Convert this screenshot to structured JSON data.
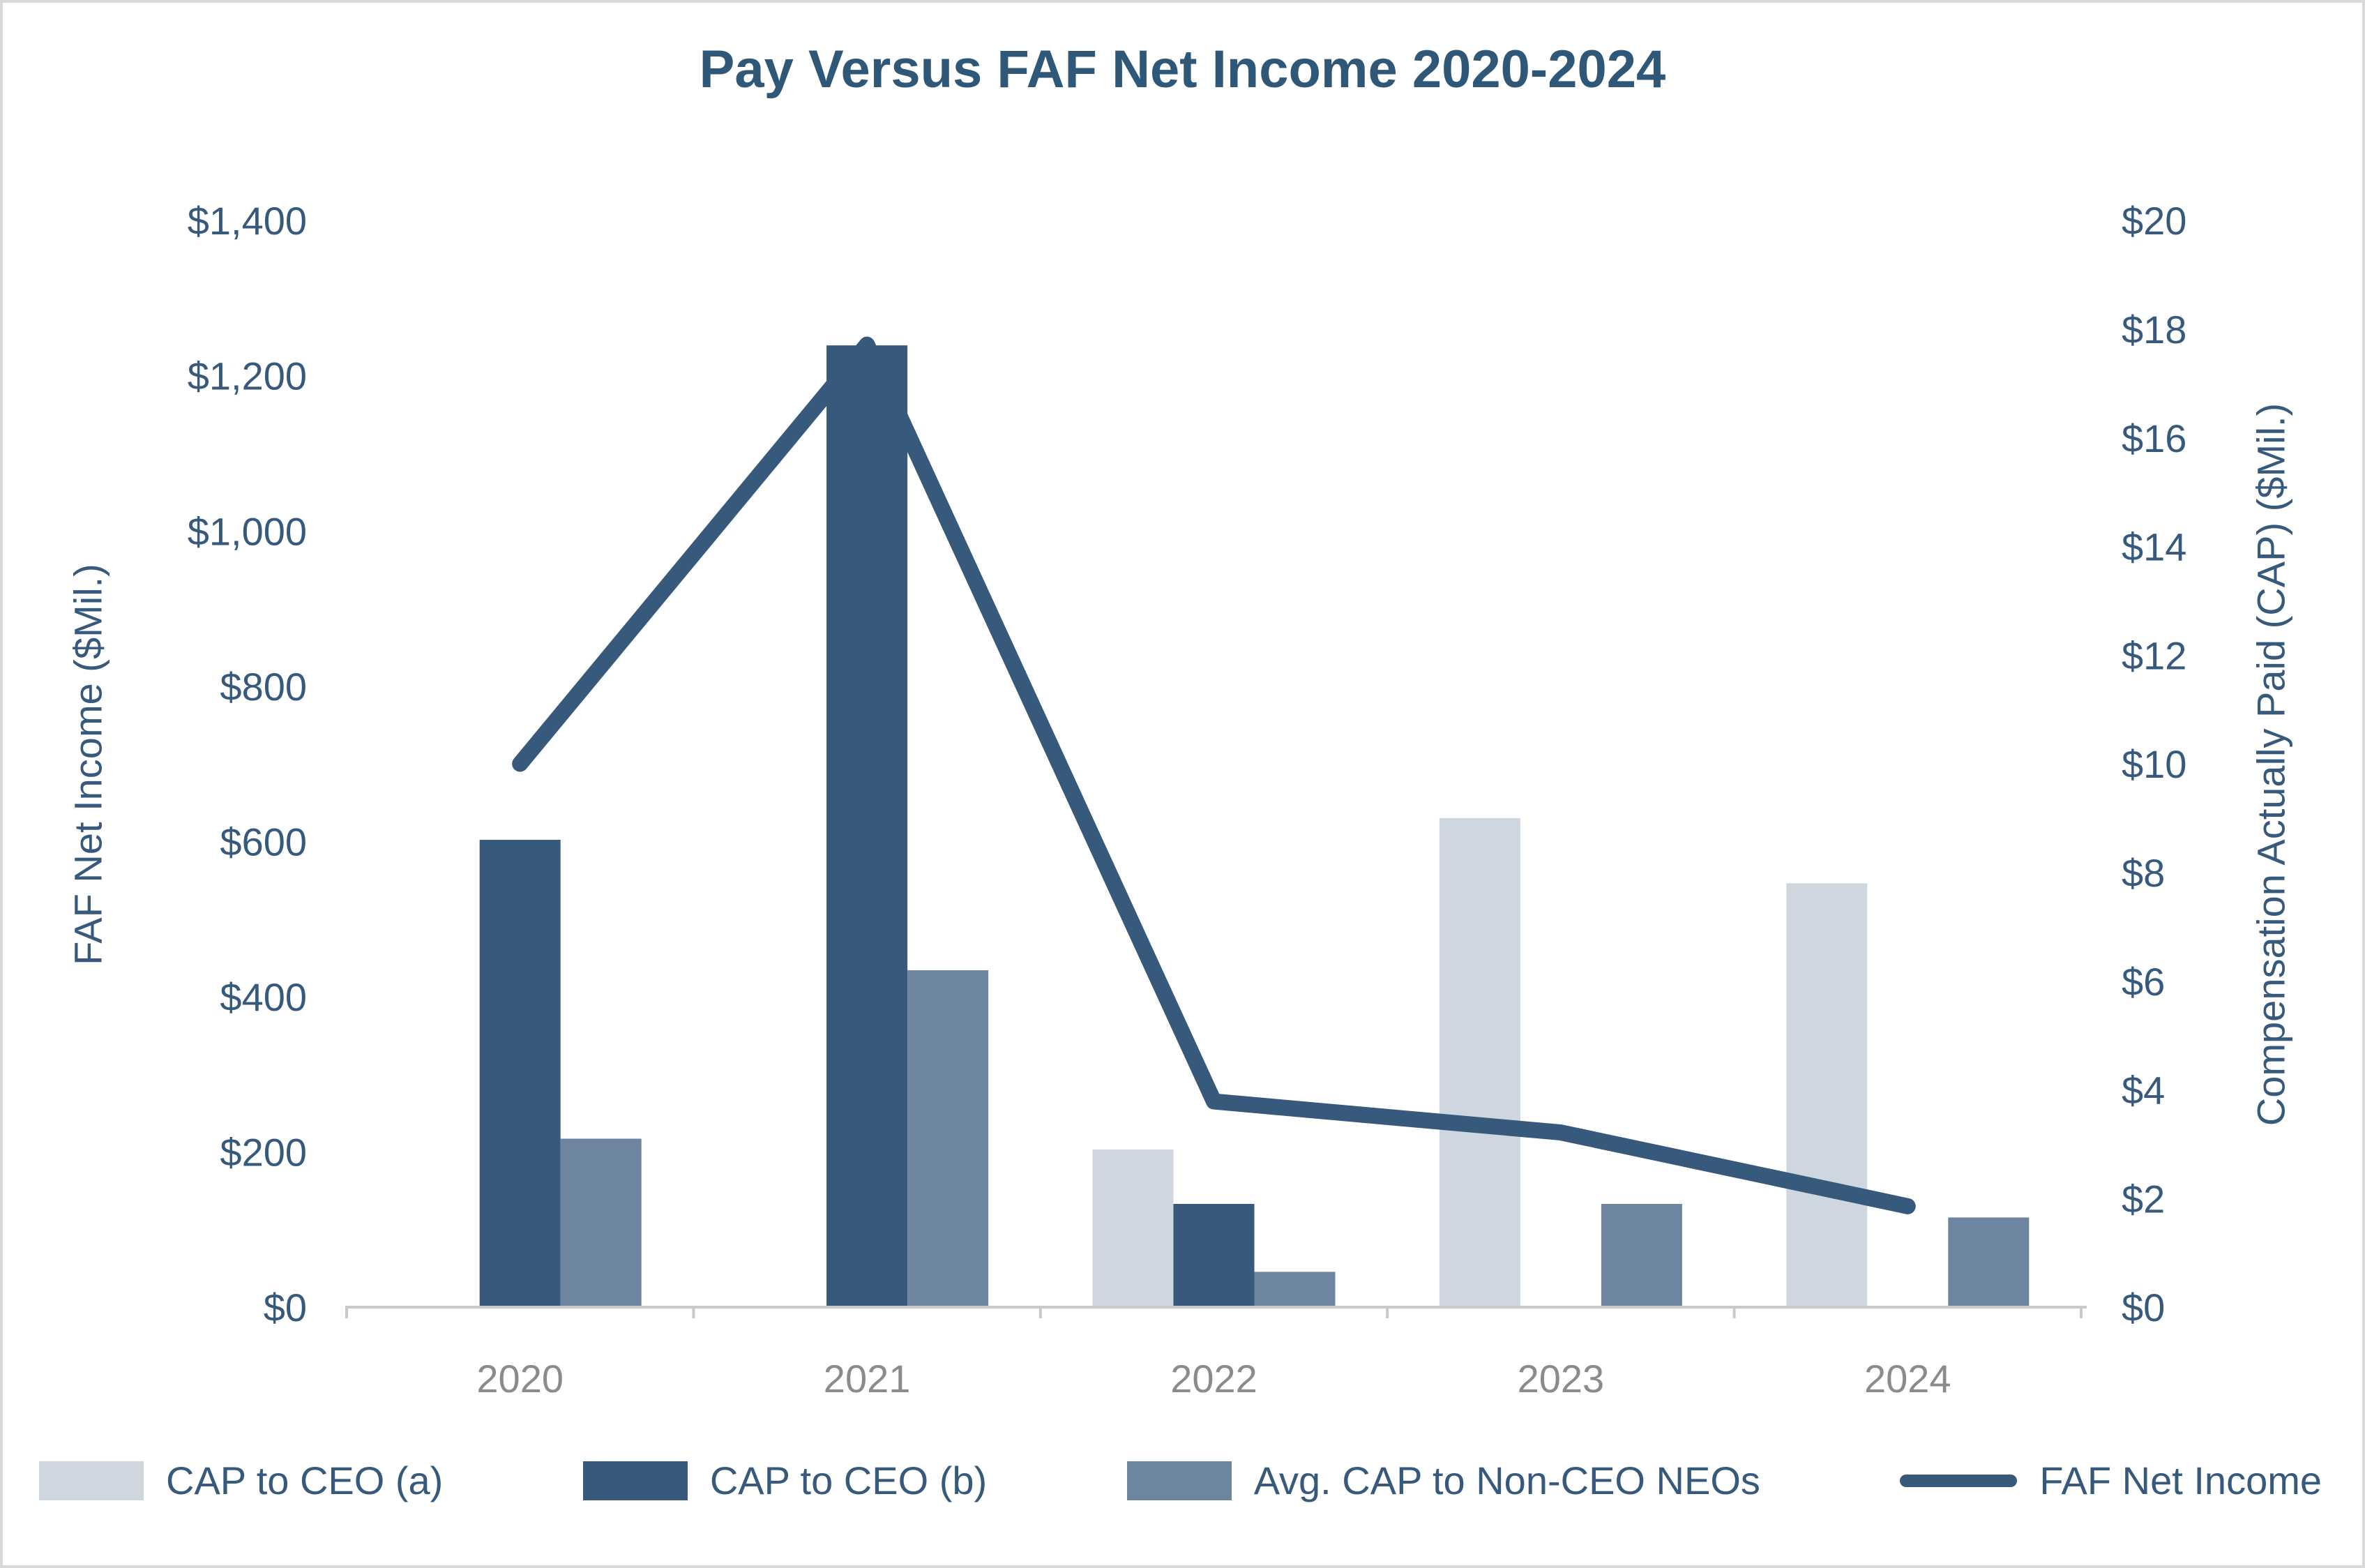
{
  "title": "Pay Versus FAF Net Income 2020-2024",
  "colors": {
    "dark_blue": "#36597C",
    "medium_blue": "#6D85A1",
    "light_blue_gray": "#CED6DF",
    "title_text": "#2F5878",
    "axis_text": "#36597C",
    "year_label_gray": "#8B8B8B",
    "axis_line_gray": "#C9C9C9",
    "page_border": "#D9D9D9"
  },
  "chart_data": {
    "type": "bar",
    "subtype": "clustered-bar-with-line-dual-axis",
    "title": "Pay Versus FAF Net Income 2020-2024",
    "categories": [
      "2020",
      "2021",
      "2022",
      "2023",
      "2024"
    ],
    "left_axis": {
      "label": "FAF Net Income ($Mil.)",
      "min": 0,
      "max": 1400,
      "step": 200,
      "tick_labels": [
        "$0",
        "$200",
        "$400",
        "$600",
        "$800",
        "$1,000",
        "$1,200",
        "$1,400"
      ]
    },
    "right_axis": {
      "label": "Compensation Actually Paid (CAP) ($Mil.)",
      "min": 0,
      "max": 20,
      "step": 2,
      "tick_labels": [
        "$0",
        "$2",
        "$4",
        "$6",
        "$8",
        "$10",
        "$12",
        "$14",
        "$16",
        "$18",
        "$20"
      ]
    },
    "grid": "off",
    "legend_position": "bottom",
    "series": [
      {
        "name": "CAP to CEO (a)",
        "type": "bar",
        "axis": "right",
        "color": "#CED6DF",
        "values": [
          null,
          null,
          2.9,
          9.0,
          7.8
        ]
      },
      {
        "name": "CAP to CEO (b)",
        "type": "bar",
        "axis": "right",
        "color": "#36597C",
        "values": [
          8.6,
          17.7,
          1.9,
          null,
          null
        ]
      },
      {
        "name": "Avg. CAP to Non-CEO NEOs",
        "type": "bar",
        "axis": "right",
        "color": "#6D85A1",
        "values": [
          3.1,
          6.2,
          0.65,
          1.9,
          1.65
        ]
      },
      {
        "name": "FAF Net Income",
        "type": "line",
        "axis": "left",
        "color": "#36597C",
        "values": [
          700,
          1240,
          265,
          225,
          130
        ]
      }
    ]
  }
}
